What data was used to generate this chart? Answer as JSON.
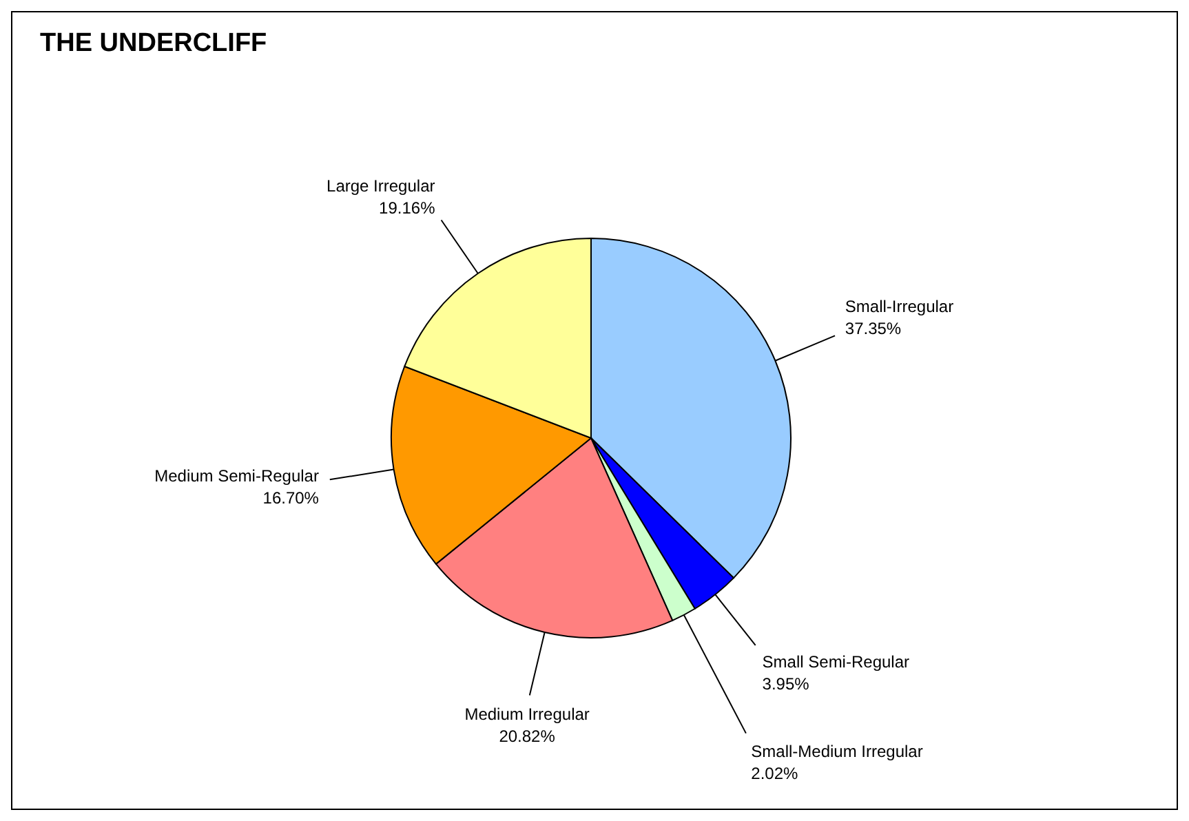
{
  "chart_data": {
    "type": "pie",
    "title": "THE UNDERCLIFF",
    "categories": [
      "Small-Irregular",
      "Small Semi-Regular",
      "Small-Medium Irregular",
      "Medium Irregular",
      "Medium Semi-Regular",
      "Large Irregular"
    ],
    "values": [
      37.35,
      3.95,
      2.02,
      20.82,
      16.7,
      19.16
    ],
    "value_labels": [
      "37.35%",
      "3.95%",
      "2.02%",
      "20.82%",
      "16.70%",
      "19.16%"
    ],
    "colors": [
      "#99ccff",
      "#0000ff",
      "#ccffcc",
      "#ff8080",
      "#ff9900",
      "#ffff99"
    ],
    "legend": false
  }
}
